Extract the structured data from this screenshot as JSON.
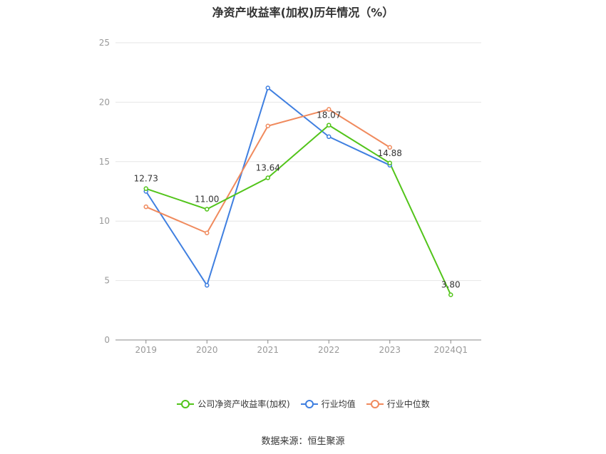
{
  "chart_data": {
    "type": "line",
    "title": "净资产收益率(加权)历年情况（%）",
    "categories": [
      "2019",
      "2020",
      "2021",
      "2022",
      "2023",
      "2024Q1"
    ],
    "ylim": [
      0,
      25
    ],
    "yticks": [
      0,
      5,
      10,
      15,
      20,
      25
    ],
    "grid": true,
    "legend_position": "bottom",
    "series": [
      {
        "name": "公司净资产收益率(加权)",
        "color": "#52c41a",
        "values": [
          12.73,
          11.0,
          13.64,
          18.07,
          14.88,
          3.8
        ],
        "labels": [
          "12.73",
          "11.00",
          "13.64",
          "18.07",
          "14.88",
          "3.80"
        ]
      },
      {
        "name": "行业均值",
        "color": "#3f7fe0",
        "values": [
          12.5,
          4.6,
          21.2,
          17.1,
          14.7,
          null
        ]
      },
      {
        "name": "行业中位数",
        "color": "#f08a5d",
        "values": [
          11.2,
          9.0,
          18.0,
          19.4,
          16.2,
          null
        ]
      }
    ]
  },
  "source": "数据来源：恒生聚源"
}
